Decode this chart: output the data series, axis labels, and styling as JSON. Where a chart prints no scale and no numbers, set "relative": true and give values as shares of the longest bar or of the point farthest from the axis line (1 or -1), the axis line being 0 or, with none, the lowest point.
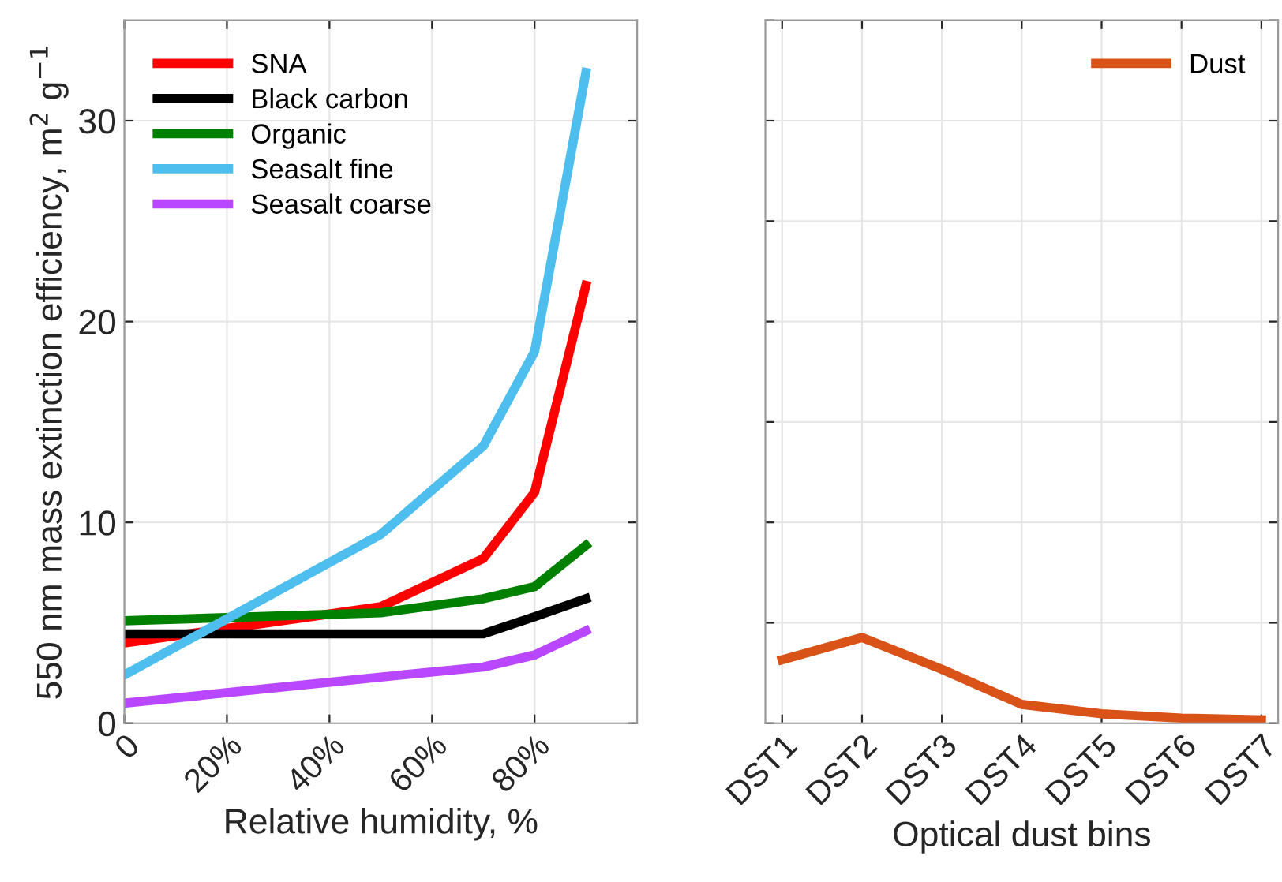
{
  "chart_data": [
    {
      "type": "line",
      "xlabel": "Relative humidity, %",
      "ylabel": "550 nm mass extinction efficiency, m$^{2}$ g$^{−1}$",
      "x": [
        0,
        50,
        70,
        80,
        90
      ],
      "xlim": [
        0,
        100
      ],
      "ylim": [
        0,
        35
      ],
      "xticks": [
        0,
        {
          "value": 20,
          "label": "20%"
        },
        {
          "value": 40,
          "label": "40%"
        },
        {
          "value": 60,
          "label": "60%"
        },
        {
          "value": 80,
          "label": "80%"
        }
      ],
      "yticks": [
        0,
        10,
        20,
        30
      ],
      "grid": true,
      "legend": "top left",
      "series": [
        {
          "name": "SNA",
          "color": "#ff0000",
          "values": [
            4.0,
            5.8,
            8.2,
            11.5,
            21.8
          ]
        },
        {
          "name": "Black carbon",
          "color": "#000000",
          "values": [
            4.45,
            4.45,
            4.45,
            5.3,
            6.2
          ]
        },
        {
          "name": "Organic",
          "color": "#008000",
          "values": [
            5.1,
            5.5,
            6.2,
            6.8,
            8.85
          ]
        },
        {
          "name": "Seasalt fine",
          "color": "#4dbeee",
          "values": [
            2.4,
            9.4,
            13.8,
            18.5,
            32.4
          ]
        },
        {
          "name": "Seasalt coarse",
          "color": "#b847ff",
          "values": [
            1.0,
            2.3,
            2.8,
            3.4,
            4.6
          ]
        }
      ]
    },
    {
      "type": "line",
      "xlabel": "Optical dust bins",
      "categories": [
        "DST1",
        "DST2",
        "DST3",
        "DST4",
        "DST5",
        "DST6",
        "DST7"
      ],
      "relative": true,
      "grid": true,
      "legend": "top right",
      "tick_labels": "x",
      "series": [
        {
          "name": "Dust",
          "color": "#d95319",
          "values": [
            0.74,
            1.0,
            0.63,
            0.22,
            0.11,
            0.06,
            0.04
          ]
        }
      ]
    }
  ]
}
